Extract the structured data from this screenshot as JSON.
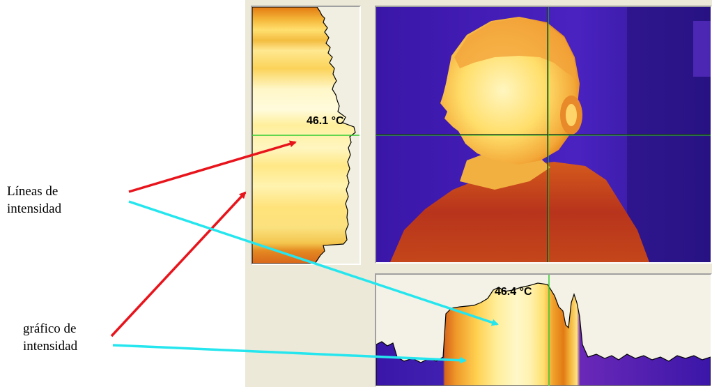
{
  "panels": {
    "vertical_profile": {
      "temperature": "46.1 °C"
    },
    "horizontal_profile": {
      "temperature": "46.4 °C"
    }
  },
  "annotations": {
    "lines_label": {
      "line1": "Líneas de",
      "line2": "intensidad"
    },
    "graph_label": {
      "line1": "gráfico de",
      "line2": "intensidad"
    }
  },
  "colors": {
    "window_bg": "#ece9d8",
    "crosshair": "#2ecc2e",
    "arrow_red": "#e8141c",
    "arrow_cyan": "#25e6ee",
    "thermal_cold": "#3a16a8",
    "thermal_warm": "#e07a10",
    "thermal_hot": "#fff4a0"
  }
}
